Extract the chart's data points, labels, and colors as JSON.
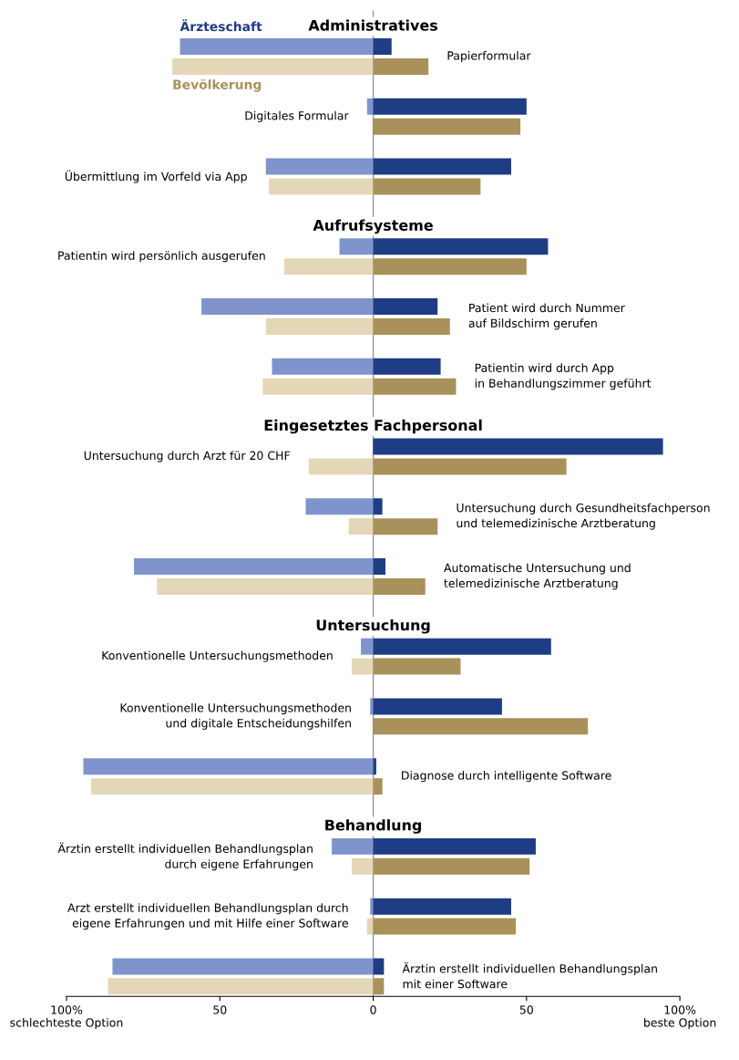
{
  "chart_data": {
    "type": "bar",
    "orientation": "horizontal",
    "stacked": true,
    "annotations": [
      "Administratives",
      "Aufrufsysteme",
      "Eingesetztes Fachpersonal",
      "Untersuchung",
      "Behandlung"
    ],
    "categories": [
      null,
      "Papierformular",
      null,
      null,
      "Digitales Formular",
      null,
      null,
      "Übermittlung im Vorfeld via App",
      null,
      null,
      null,
      "Patientin wird persönlich ausgerufen",
      null,
      null,
      "Patient wird durch Nummer\nauf Bildschirm gerufen",
      null,
      null,
      "Patientin wird durch App\nin Behandlungszimmer geführt",
      null,
      null,
      null,
      "Untersuchung durch Arzt für 20 CHF",
      null,
      null,
      "Untersuchung durch Gesundheitsfachperson\nund telemedizinische Arztberatung",
      null,
      null,
      "Automatische Untersuchung und\ntelemedizinische Arztberatung",
      null,
      null,
      null,
      "Konventionelle Untersuchungsmethoden",
      null,
      null,
      "Konventionelle Untersuchungsmethoden\nund digitale Entscheidungshilfen",
      null,
      null,
      "Diagnose durch intelligente Software",
      null,
      null,
      null,
      "Ärztin erstellt individuellen Behandlungsplan\ndurch eigene Erfahrungen",
      null,
      null,
      "Arzt erstellt individuellen Behandlungsplan durch\neigene Erfahrungen und mit Hilfe einer Software",
      null,
      null,
      "Ärztin erstellt individuellen Behandlungsplan\nmit einer Software",
      null
    ],
    "xlim": [
      -100,
      100
    ],
    "xticks": [
      {
        "value": -100,
        "label": "100%\nschlechteste Option"
      },
      {
        "value": -50,
        "label": "50"
      },
      0,
      {
        "value": 50,
        "label": "50"
      },
      {
        "value": 100,
        "label": "100%\nbeste Option"
      }
    ],
    "ref_lines": [
      {
        "axis": "x",
        "value": 0,
        "color": "#8c8c8c"
      }
    ],
    "series": [
      {
        "color": "#7f93cc",
        "values": [
          null,
          -63,
          null,
          null,
          -2,
          null,
          null,
          -35,
          null,
          null,
          null,
          -11,
          null,
          null,
          -56,
          null,
          null,
          -33,
          null,
          null,
          null,
          null,
          null,
          null,
          -22,
          null,
          null,
          -78,
          null,
          null,
          null,
          -4,
          null,
          null,
          -1,
          null,
          null,
          -94.5,
          null,
          null,
          null,
          -13.5,
          null,
          null,
          -1,
          null,
          null,
          -85,
          null
        ]
      },
      {
        "name": "Ärzteschaft",
        "color": "#1f3d84",
        "values": [
          null,
          6,
          null,
          null,
          50,
          null,
          null,
          45,
          null,
          null,
          null,
          57,
          null,
          null,
          21,
          null,
          null,
          22,
          null,
          null,
          null,
          94.5,
          null,
          null,
          3,
          null,
          null,
          4,
          null,
          null,
          null,
          58,
          null,
          null,
          42,
          null,
          null,
          1,
          null,
          null,
          null,
          53,
          null,
          null,
          45,
          null,
          null,
          3.5,
          null
        ]
      },
      {
        "color": "#e4d7b7",
        "values": [
          null,
          null,
          -65.5,
          null,
          null,
          null,
          null,
          null,
          -34,
          null,
          null,
          null,
          -29,
          null,
          null,
          -35,
          null,
          null,
          -36,
          null,
          null,
          null,
          -21,
          null,
          null,
          -8,
          null,
          null,
          -70.5,
          null,
          null,
          null,
          -7,
          null,
          null,
          null,
          null,
          null,
          -92,
          null,
          null,
          null,
          -7,
          null,
          null,
          -2,
          null,
          null,
          -86.5
        ]
      },
      {
        "name": "Bevölkerung",
        "color": "#a8915a",
        "values": [
          null,
          null,
          18,
          null,
          null,
          48,
          null,
          null,
          35,
          null,
          null,
          null,
          50,
          null,
          null,
          25,
          null,
          null,
          27,
          null,
          null,
          null,
          63,
          null,
          null,
          21,
          null,
          null,
          17,
          null,
          null,
          null,
          28.5,
          null,
          null,
          70,
          null,
          null,
          3,
          null,
          null,
          null,
          51,
          null,
          null,
          46.5,
          null,
          null,
          3.5
        ]
      }
    ]
  }
}
